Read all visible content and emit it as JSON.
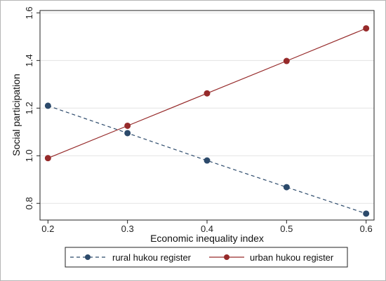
{
  "chart_data": {
    "type": "line",
    "xlabel": "Economic inequality index",
    "ylabel": "Social participation",
    "x": [
      0.2,
      0.3,
      0.4,
      0.5,
      0.6
    ],
    "x_ticks": [
      "0.2",
      "0.3",
      "0.4",
      "0.5",
      "0.6"
    ],
    "y_ticks": [
      "0.8",
      "1.0",
      "1.2",
      "1.4",
      "1.6"
    ],
    "xlim": [
      0.19,
      0.61
    ],
    "ylim": [
      0.73,
      1.61
    ],
    "grid": true,
    "legend_position": "bottom",
    "series": [
      {
        "name": "rural hukou register",
        "values": [
          1.21,
          1.095,
          0.98,
          0.868,
          0.757
        ],
        "color": "#2c4a6b",
        "dash": "dashed"
      },
      {
        "name": "urban hukou register",
        "values": [
          0.99,
          1.126,
          1.262,
          1.398,
          1.535
        ],
        "color": "#962a2a",
        "dash": "solid"
      }
    ]
  }
}
